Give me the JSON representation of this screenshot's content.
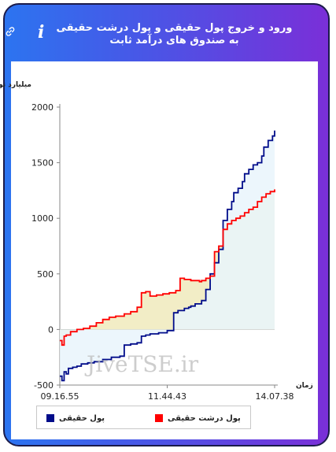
{
  "header": {
    "title": "ورود و خروج پول حقیقی و پول درشت حقیقی به صندوق های درآمد ثابت",
    "info_icon": "info-icon",
    "link_icon": "link-icon"
  },
  "watermark": "JiveTSE.ir",
  "colors": {
    "real_money": "#000c8a",
    "big_real_money": "#ff0000",
    "real_fill": "#e9f4fb",
    "big_fill": "#f0eabc"
  },
  "chart_data": {
    "type": "line",
    "ylabel": "میلیارد تومان",
    "xlabel": "زمان",
    "ylim": [
      -500,
      2000
    ],
    "yticks": [
      -500,
      0,
      500,
      1000,
      1500,
      2000
    ],
    "xtick_labels": [
      "09.16.55",
      "11.44.43",
      "14.07.38"
    ],
    "xlim": [
      0,
      100
    ],
    "legend_position": "bottom",
    "series": [
      {
        "name": "پول حقیقی",
        "x": [
          0,
          1,
          2,
          3,
          4,
          6,
          8,
          10,
          13,
          16,
          20,
          24,
          28,
          30,
          33,
          36,
          38,
          40,
          42,
          43,
          46,
          50,
          53,
          55,
          58,
          60,
          61,
          63,
          66,
          68,
          70,
          72,
          74,
          76,
          78,
          80,
          81,
          83,
          85,
          86,
          88,
          90,
          92,
          94,
          95,
          97,
          99,
          100
        ],
        "values": [
          -420,
          -460,
          -380,
          -400,
          -350,
          -340,
          -330,
          -310,
          -300,
          -290,
          -270,
          -250,
          -240,
          -140,
          -130,
          -120,
          -60,
          -50,
          -40,
          -40,
          -30,
          -10,
          150,
          170,
          190,
          200,
          210,
          230,
          260,
          360,
          500,
          600,
          720,
          980,
          1080,
          1150,
          1230,
          1270,
          1330,
          1400,
          1440,
          1480,
          1500,
          1560,
          1640,
          1700,
          1740,
          1790
        ]
      },
      {
        "name": "پول درشت حقیقی",
        "x": [
          0,
          1,
          2,
          3,
          5,
          8,
          11,
          14,
          17,
          20,
          23,
          26,
          30,
          33,
          36,
          38,
          40,
          42,
          45,
          48,
          51,
          54,
          56,
          58,
          61,
          63,
          65,
          66,
          68,
          70,
          72,
          74,
          76,
          78,
          80,
          82,
          84,
          86,
          88,
          90,
          92,
          94,
          96,
          98,
          100
        ],
        "values": [
          -100,
          -140,
          -60,
          -50,
          -20,
          0,
          10,
          30,
          60,
          90,
          110,
          120,
          140,
          160,
          200,
          330,
          340,
          300,
          310,
          320,
          330,
          350,
          460,
          450,
          440,
          440,
          430,
          440,
          460,
          480,
          700,
          750,
          900,
          950,
          980,
          1000,
          1020,
          1050,
          1080,
          1100,
          1150,
          1190,
          1220,
          1240,
          1260
        ]
      }
    ]
  },
  "legend": {
    "real_label": "پول حقیقی",
    "big_label": "پول درشت حقیقی"
  }
}
